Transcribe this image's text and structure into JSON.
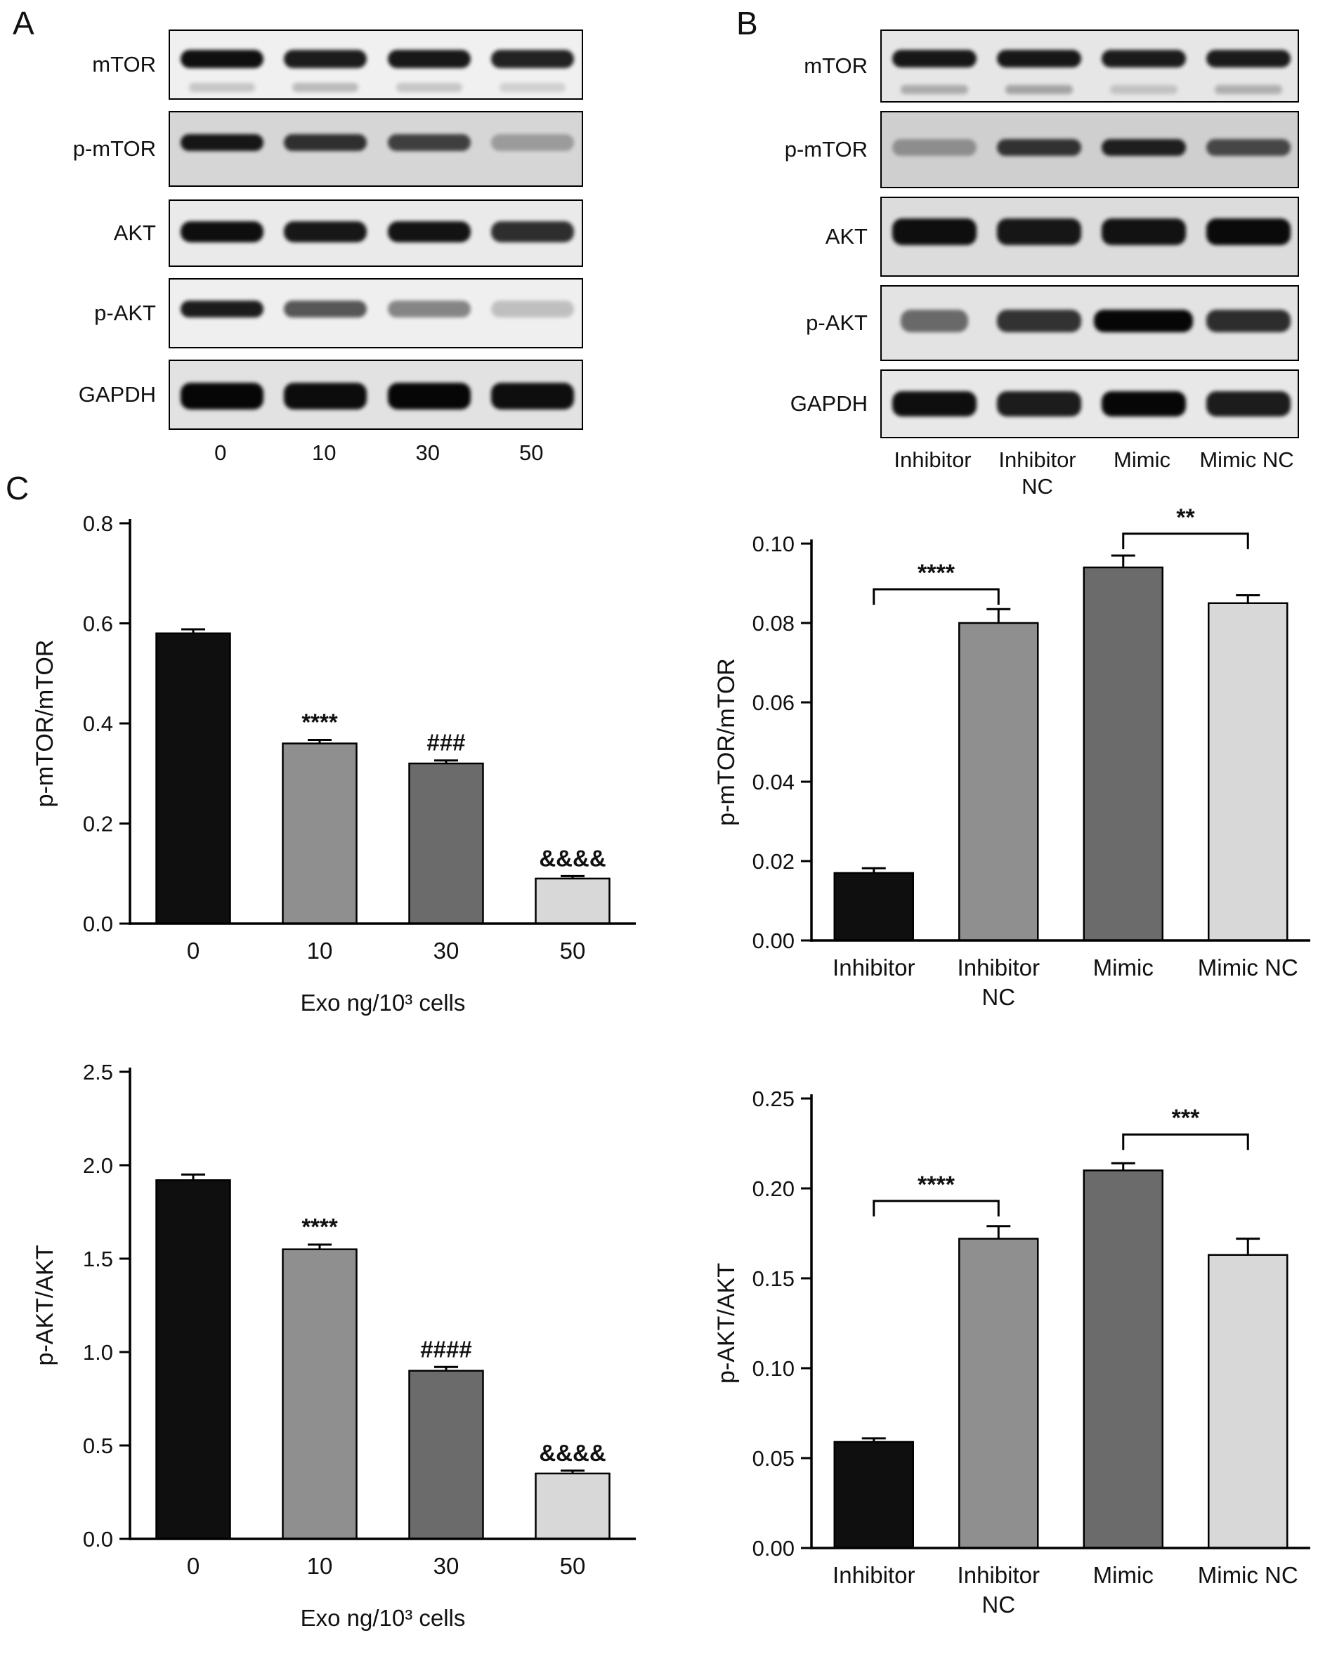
{
  "panel_a": {
    "label": "A",
    "lanes": [
      "0",
      "10",
      "30",
      "50"
    ],
    "rows": [
      {
        "target": "mTOR",
        "bands": [
          0.96,
          0.9,
          0.92,
          0.88
        ],
        "ghost": [
          0.2,
          0.26,
          0.2,
          0.15
        ],
        "band_height": 26,
        "band_y": 0.4,
        "bg": "#f0f0f0",
        "texture": true
      },
      {
        "target": "p-mTOR",
        "bands": [
          0.92,
          0.8,
          0.72,
          0.28
        ],
        "band_height": 24,
        "band_y": 0.4,
        "bg": "#d6d6d6",
        "texture": true
      },
      {
        "target": "AKT",
        "bands": [
          0.96,
          0.92,
          0.94,
          0.82
        ],
        "band_height": 30,
        "band_y": 0.46,
        "bg": "#eaeaea",
        "texture": false
      },
      {
        "target": "p-AKT",
        "bands": [
          0.9,
          0.65,
          0.45,
          0.2
        ],
        "band_height": 24,
        "band_y": 0.42,
        "bg": "#efefef",
        "texture": false
      },
      {
        "target": "GAPDH",
        "bands": [
          1.0,
          0.97,
          1.0,
          0.96
        ],
        "band_height": 38,
        "band_y": 0.5,
        "bg": "#e2e2e2",
        "texture": true
      }
    ]
  },
  "panel_b": {
    "label": "B",
    "lanes": [
      "Inhibitor",
      "Inhibitor NC",
      "Mimic",
      "Mimic NC"
    ],
    "lane_wrap": [
      false,
      true,
      false,
      false
    ],
    "rows": [
      {
        "target": "mTOR",
        "bands": [
          0.92,
          0.92,
          0.9,
          0.9
        ],
        "ghost": [
          0.3,
          0.34,
          0.18,
          0.28
        ],
        "band_height": 25,
        "band_y": 0.38,
        "bg": "#e6e6e6",
        "texture": true
      },
      {
        "target": "p-mTOR",
        "bands": [
          0.32,
          0.78,
          0.88,
          0.68
        ],
        "band_height": 24,
        "band_y": 0.45,
        "bg": "#cfcfcf",
        "texture": true
      },
      {
        "target": "AKT",
        "bands": [
          0.96,
          0.92,
          0.94,
          0.98
        ],
        "band_height": 38,
        "band_y": 0.42,
        "bg": "#dcdcdc",
        "texture": false
      },
      {
        "target": "p-AKT",
        "bands": [
          0.55,
          0.8,
          1.0,
          0.82
        ],
        "widths": [
          0.8,
          1.0,
          1.18,
          1.0
        ],
        "band_height": 32,
        "band_y": 0.45,
        "bg": "#e3e3e3",
        "texture": false
      },
      {
        "target": "GAPDH",
        "bands": [
          0.96,
          0.9,
          1.0,
          0.9
        ],
        "band_height": 36,
        "band_y": 0.48,
        "bg": "#e8e8e8",
        "texture": true
      }
    ]
  },
  "panel_c": {
    "label": "C"
  },
  "chart_data": [
    {
      "id": "pmtor-dose",
      "type": "bar",
      "title": "",
      "ylabel": "p-mTOR/mTOR",
      "xlabel": "Exo ng/10³ cells",
      "categories": [
        "0",
        "10",
        "30",
        "50"
      ],
      "values": [
        0.58,
        0.36,
        0.32,
        0.09
      ],
      "errors": [
        0.008,
        0.007,
        0.006,
        0.005
      ],
      "annotations": [
        "",
        "****",
        "###",
        "&&&&"
      ],
      "ylim": [
        0,
        0.8
      ],
      "yticks": [
        "0.0",
        "0.2",
        "0.4",
        "0.6",
        "0.8"
      ],
      "bar_colors": [
        "#0f0f0f",
        "#8f8f8f",
        "#6b6b6b",
        "#d8d8d8"
      ],
      "grid": false,
      "legend": "none"
    },
    {
      "id": "pmtor-group",
      "type": "bar",
      "title": "",
      "ylabel": "p-mTOR/mTOR",
      "xlabel": "",
      "categories": [
        "Inhibitor",
        "Inhibitor NC",
        "Mimic",
        "Mimic NC"
      ],
      "category_wrap": [
        false,
        true,
        false,
        false
      ],
      "values": [
        0.017,
        0.08,
        0.094,
        0.085
      ],
      "errors": [
        0.0012,
        0.0035,
        0.003,
        0.002
      ],
      "brackets": [
        {
          "from": 0,
          "to": 1,
          "label": "****",
          "y": 0.0885
        },
        {
          "from": 2,
          "to": 3,
          "label": "**",
          "y": 0.1025
        }
      ],
      "ylim": [
        0,
        0.1
      ],
      "yticks": [
        "0.00",
        "0.02",
        "0.04",
        "0.06",
        "0.08",
        "0.10"
      ],
      "bar_colors": [
        "#0f0f0f",
        "#8f8f8f",
        "#6b6b6b",
        "#d8d8d8"
      ],
      "grid": false,
      "legend": "none"
    },
    {
      "id": "pakt-dose",
      "type": "bar",
      "title": "",
      "ylabel": "p-AKT/AKT",
      "xlabel": "Exo ng/10³ cells",
      "categories": [
        "0",
        "10",
        "30",
        "50"
      ],
      "values": [
        1.92,
        1.55,
        0.9,
        0.35
      ],
      "errors": [
        0.03,
        0.025,
        0.02,
        0.015
      ],
      "annotations": [
        "",
        "****",
        "####",
        "&&&&"
      ],
      "ylim": [
        0,
        2.5
      ],
      "yticks": [
        "0.0",
        "0.5",
        "1.0",
        "1.5",
        "2.0",
        "2.5"
      ],
      "bar_colors": [
        "#0f0f0f",
        "#8f8f8f",
        "#6b6b6b",
        "#d8d8d8"
      ],
      "grid": false,
      "legend": "none"
    },
    {
      "id": "pakt-group",
      "type": "bar",
      "title": "",
      "ylabel": "p-AKT/AKT",
      "xlabel": "",
      "categories": [
        "Inhibitor",
        "Inhibitor NC",
        "Mimic",
        "Mimic NC"
      ],
      "category_wrap": [
        false,
        true,
        false,
        false
      ],
      "values": [
        0.059,
        0.172,
        0.21,
        0.163
      ],
      "errors": [
        0.002,
        0.007,
        0.004,
        0.009
      ],
      "brackets": [
        {
          "from": 0,
          "to": 1,
          "label": "****",
          "y": 0.193
        },
        {
          "from": 2,
          "to": 3,
          "label": "***",
          "y": 0.23
        }
      ],
      "ylim": [
        0,
        0.25
      ],
      "yticks": [
        "0.00",
        "0.05",
        "0.10",
        "0.15",
        "0.20",
        "0.25"
      ],
      "bar_colors": [
        "#0f0f0f",
        "#8f8f8f",
        "#6b6b6b",
        "#d8d8d8"
      ],
      "grid": false,
      "legend": "none"
    }
  ]
}
